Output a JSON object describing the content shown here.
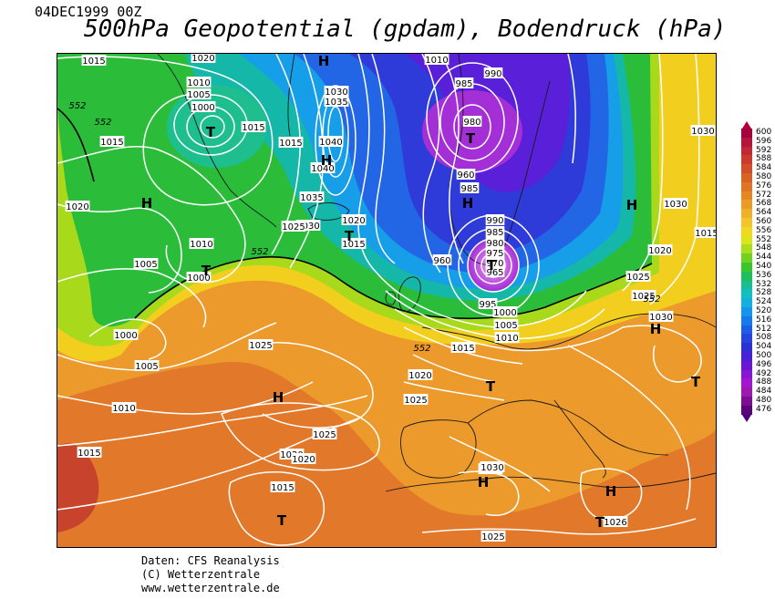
{
  "header": {
    "date": "04DEC1999 00Z",
    "title": "500hPa Geopotential (gpdam), Bodendruck (hPa)"
  },
  "map": {
    "field_colors": {
      "trough_core": "#a52fd6",
      "deep_blue": "#2a3fd8",
      "blue": "#1f6fe8",
      "cyan": "#12b6d6",
      "green": "#1fbf3a",
      "yellow_green": "#c9e01c",
      "yellow": "#f2d11b",
      "orange": "#ec9a2b",
      "dark_orange": "#dc6a23",
      "red": "#c43c2a"
    },
    "pressure_centers": [
      {
        "type": "T",
        "label": "T"
      },
      {
        "type": "T",
        "label": "T"
      },
      {
        "type": "T",
        "label": "T"
      },
      {
        "type": "T",
        "label": "T"
      },
      {
        "type": "T",
        "label": "T"
      },
      {
        "type": "T",
        "label": "T"
      },
      {
        "type": "T",
        "label": "T"
      },
      {
        "type": "T",
        "label": "T"
      },
      {
        "type": "T",
        "label": "T"
      },
      {
        "type": "H",
        "label": "H"
      },
      {
        "type": "H",
        "label": "H"
      },
      {
        "type": "H",
        "label": "H"
      },
      {
        "type": "H",
        "label": "H"
      },
      {
        "type": "H",
        "label": "H"
      },
      {
        "type": "H",
        "label": "H"
      },
      {
        "type": "H",
        "label": "H"
      },
      {
        "type": "H",
        "label": "H"
      },
      {
        "type": "H",
        "label": "H"
      }
    ],
    "isobar_labels": [
      "1015",
      "1020",
      "1010",
      "1005",
      "1000",
      "1015",
      "1015",
      "1015",
      "1020",
      "1010",
      "1000",
      "1005",
      "1000",
      "1005",
      "1010",
      "1015",
      "1025",
      "1020",
      "1025",
      "1025",
      "1020",
      "1015",
      "1030",
      "1035",
      "1040",
      "1040",
      "1035",
      "1030",
      "1025",
      "1020",
      "1015",
      "1010",
      "990",
      "985",
      "980",
      "960",
      "985",
      "990",
      "985",
      "980",
      "975",
      "970",
      "965",
      "960",
      "995",
      "1000",
      "1005",
      "1010",
      "1015",
      "1020",
      "1025",
      "1030",
      "1030",
      "1020",
      "1015",
      "1025",
      "1030",
      "1025",
      "1025",
      "1030",
      "1026"
    ],
    "geopotential_labels": [
      "552",
      "552",
      "552",
      "552",
      "552"
    ]
  },
  "legend": {
    "levels": [
      {
        "value": "600",
        "color": "#a9003c"
      },
      {
        "value": "596",
        "color": "#b8133a"
      },
      {
        "value": "592",
        "color": "#c42634"
      },
      {
        "value": "588",
        "color": "#cb3a2d"
      },
      {
        "value": "584",
        "color": "#d24e28"
      },
      {
        "value": "580",
        "color": "#d96124"
      },
      {
        "value": "576",
        "color": "#df7423"
      },
      {
        "value": "572",
        "color": "#e58824"
      },
      {
        "value": "568",
        "color": "#eb9c27"
      },
      {
        "value": "564",
        "color": "#f0b02a"
      },
      {
        "value": "560",
        "color": "#f4c52b"
      },
      {
        "value": "556",
        "color": "#f2d91f"
      },
      {
        "value": "552",
        "color": "#dbe51a"
      },
      {
        "value": "548",
        "color": "#a8df18"
      },
      {
        "value": "544",
        "color": "#6fd31d"
      },
      {
        "value": "540",
        "color": "#38c62b"
      },
      {
        "value": "536",
        "color": "#1ebe5b"
      },
      {
        "value": "532",
        "color": "#15bf8f"
      },
      {
        "value": "528",
        "color": "#12bfc0"
      },
      {
        "value": "524",
        "color": "#11b0e0"
      },
      {
        "value": "520",
        "color": "#1395ee"
      },
      {
        "value": "516",
        "color": "#1779ee"
      },
      {
        "value": "512",
        "color": "#1c5ee8"
      },
      {
        "value": "508",
        "color": "#2445df"
      },
      {
        "value": "504",
        "color": "#2d2fd8"
      },
      {
        "value": "500",
        "color": "#4a1fd8"
      },
      {
        "value": "496",
        "color": "#6a16d6"
      },
      {
        "value": "492",
        "color": "#8a14d4"
      },
      {
        "value": "488",
        "color": "#a514cf"
      },
      {
        "value": "484",
        "color": "#9f17b1"
      },
      {
        "value": "480",
        "color": "#7d0d95"
      },
      {
        "value": "476",
        "color": "#5a0479"
      }
    ]
  },
  "footer": {
    "source": "Daten: CFS Reanalysis",
    "copyright": "(C) Wetterzentrale",
    "url": "www.wetterzentrale.de"
  }
}
